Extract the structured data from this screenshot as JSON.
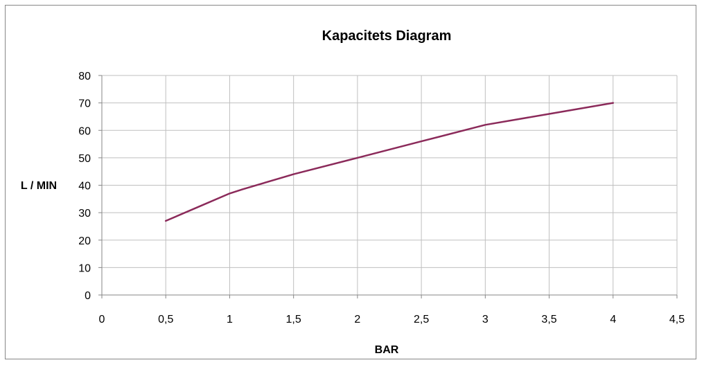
{
  "chart_data": {
    "type": "line",
    "title": "Kapacitets Diagram",
    "xlabel": "BAR",
    "ylabel": "L / MIN",
    "xlim": [
      0,
      4.5
    ],
    "ylim": [
      0,
      80
    ],
    "x_ticks": [
      0,
      0.5,
      1,
      1.5,
      2,
      2.5,
      3,
      3.5,
      4,
      4.5
    ],
    "x_tick_labels": [
      "0",
      "0,5",
      "1",
      "1,5",
      "2",
      "2,5",
      "3",
      "3,5",
      "4",
      "4,5"
    ],
    "y_ticks": [
      0,
      10,
      20,
      30,
      40,
      50,
      60,
      70,
      80
    ],
    "y_tick_labels": [
      "0",
      "10",
      "20",
      "30",
      "40",
      "50",
      "60",
      "70",
      "80"
    ],
    "grid": true,
    "legend": "none",
    "series": [
      {
        "color": "#8b2a5a",
        "x": [
          0.5,
          0.75,
          1,
          1.1,
          1.5,
          2,
          2.5,
          3,
          3.5,
          4
        ],
        "y": [
          27,
          32,
          37,
          38.5,
          44,
          50,
          56,
          62,
          66,
          70
        ]
      }
    ],
    "colors": {
      "grid": "#bfbfbf",
      "axis": "#868686",
      "frame": "#868686"
    }
  }
}
